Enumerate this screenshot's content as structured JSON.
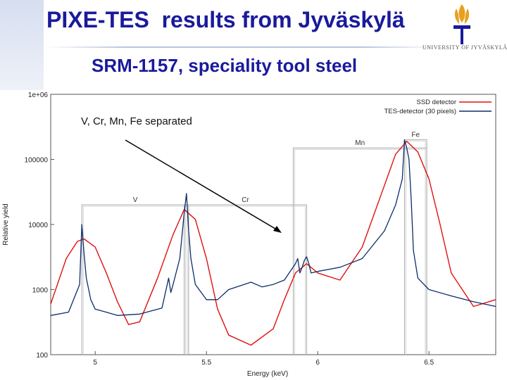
{
  "header": {
    "title": "PIXE-TES  results from Jyväskylä",
    "subtitle": "SRM-1157, speciality tool steel",
    "logo_text": "UNIVERSITY OF JYVÄSKYLÄ"
  },
  "colors": {
    "title": "#1a1a9c",
    "ssd": "#e01010",
    "tes": "#0c2d6b",
    "arrow": "#000000",
    "box": "#a8a8a8",
    "logo": "#e8a020"
  },
  "chart_data": {
    "type": "line",
    "title": "",
    "xlabel": "Energy (keV)",
    "ylabel": "Relative yield",
    "xlim": [
      4.8,
      6.8
    ],
    "ylim": [
      100,
      1000000
    ],
    "yscale": "log",
    "x_ticks": [
      {
        "value": 5,
        "label": "5"
      },
      {
        "value": 5.5,
        "label": "5.5"
      },
      {
        "value": 6,
        "label": "6"
      },
      {
        "value": 6.5,
        "label": "6.5"
      }
    ],
    "y_ticks": [
      {
        "value": 1000000,
        "label": "1e+06"
      },
      {
        "value": 100000,
        "label": "100000"
      },
      {
        "value": 10000,
        "label": "10000"
      },
      {
        "value": 1000,
        "label": "1000"
      },
      {
        "value": 100,
        "label": "100"
      }
    ],
    "legend": {
      "position": "top-right"
    },
    "series": [
      {
        "name": "SSD detector",
        "x": [
          4.8,
          4.87,
          4.92,
          4.95,
          5.0,
          5.05,
          5.1,
          5.15,
          5.2,
          5.28,
          5.35,
          5.4,
          5.45,
          5.5,
          5.55,
          5.6,
          5.7,
          5.8,
          5.85,
          5.9,
          5.95,
          6.0,
          6.1,
          6.2,
          6.3,
          6.35,
          6.4,
          6.45,
          6.5,
          6.55,
          6.6,
          6.7,
          6.8
        ],
        "y": [
          600,
          3000,
          5500,
          6000,
          4500,
          1800,
          650,
          290,
          320,
          1500,
          7000,
          17000,
          12000,
          3000,
          500,
          200,
          140,
          250,
          700,
          1800,
          2500,
          1800,
          1400,
          4500,
          40000,
          120000,
          190000,
          130000,
          50000,
          10000,
          1800,
          550,
          700
        ]
      },
      {
        "name": "TES-detector (30 pixels)",
        "x": [
          4.8,
          4.88,
          4.93,
          4.94,
          4.95,
          4.96,
          4.98,
          5.0,
          5.05,
          5.1,
          5.2,
          5.3,
          5.33,
          5.34,
          5.35,
          5.38,
          5.4,
          5.41,
          5.42,
          5.43,
          5.45,
          5.5,
          5.55,
          5.6,
          5.7,
          5.75,
          5.8,
          5.85,
          5.9,
          5.91,
          5.92,
          5.93,
          5.94,
          5.95,
          5.96,
          5.97,
          6.0,
          6.1,
          6.2,
          6.3,
          6.35,
          6.38,
          6.39,
          6.4,
          6.41,
          6.42,
          6.43,
          6.45,
          6.5,
          6.6,
          6.7,
          6.8
        ],
        "y": [
          400,
          450,
          1200,
          10000,
          3500,
          1500,
          700,
          500,
          450,
          400,
          420,
          520,
          1500,
          900,
          1200,
          3000,
          15000,
          30000,
          8000,
          3000,
          1200,
          700,
          700,
          1000,
          1300,
          1100,
          1200,
          1400,
          2500,
          3000,
          1800,
          2200,
          2800,
          3200,
          2500,
          1800,
          1900,
          2200,
          3000,
          8000,
          20000,
          50000,
          200000,
          150000,
          100000,
          25000,
          4000,
          1500,
          1000,
          800,
          650,
          550
        ]
      }
    ],
    "element_boxes": [
      {
        "label": "V",
        "x_min": 4.94,
        "x_max": 5.42,
        "y_top": 20000
      },
      {
        "label": "Cr",
        "x_min": 5.4,
        "x_max": 5.95,
        "y_top": 20000
      },
      {
        "label": "Mn",
        "x_min": 5.89,
        "x_max": 6.49,
        "y_top": 150000
      },
      {
        "label": "Fe",
        "x_min": 6.39,
        "x_max": 6.49,
        "y_top": 200000
      }
    ],
    "annotation": {
      "text": "V, Cr, Mn, Fe separated"
    }
  }
}
